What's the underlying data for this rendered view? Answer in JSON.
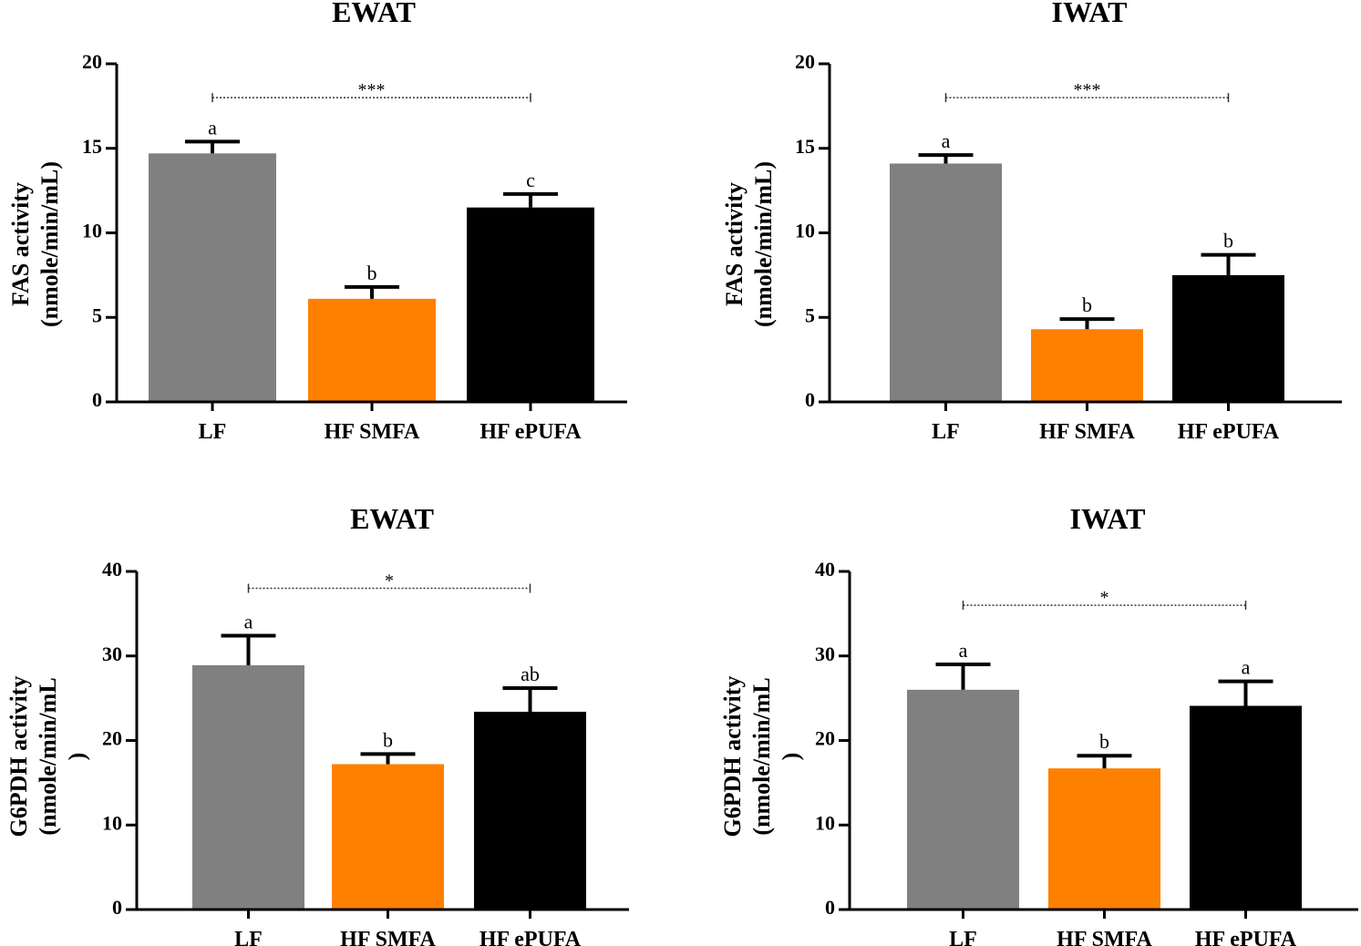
{
  "chart_data": [
    {
      "type": "bar",
      "title": "EWAT",
      "ylabel": [
        "FAS activity",
        "(nmole/min/mL)"
      ],
      "categories": [
        "LF",
        "HF SMFA",
        "HF ePUFA"
      ],
      "values": [
        14.7,
        6.1,
        11.5
      ],
      "errors": [
        0.7,
        0.7,
        0.8
      ],
      "letters": [
        "a",
        "b",
        "c"
      ],
      "colors": [
        "#808080",
        "#ff8000",
        "#000000"
      ],
      "ylim": [
        0,
        20
      ],
      "yticks": [
        "0",
        "5",
        "10",
        "15",
        "20"
      ],
      "significance": {
        "label": "***",
        "from": 0,
        "to": 2,
        "y": 18
      }
    },
    {
      "type": "bar",
      "title": "IWAT",
      "ylabel": [
        "FAS activity",
        "(nmole/min/mL)"
      ],
      "categories": [
        "LF",
        "HF SMFA",
        "HF ePUFA"
      ],
      "values": [
        14.1,
        4.3,
        7.5
      ],
      "errors": [
        0.5,
        0.6,
        1.2
      ],
      "letters": [
        "a",
        "b",
        "b"
      ],
      "colors": [
        "#808080",
        "#ff8000",
        "#000000"
      ],
      "ylim": [
        0,
        20
      ],
      "yticks": [
        "0",
        "5",
        "10",
        "15",
        "20"
      ],
      "significance": {
        "label": "***",
        "from": 0,
        "to": 2,
        "y": 18
      }
    },
    {
      "type": "bar",
      "title": "EWAT",
      "ylabel": [
        "G6PDH activity",
        "(nmole/min/mL",
        ")"
      ],
      "categories": [
        "LF",
        "HF SMFA",
        "HF ePUFA"
      ],
      "values": [
        28.9,
        17.2,
        23.4
      ],
      "errors": [
        3.5,
        1.2,
        2.8
      ],
      "letters": [
        "a",
        "b",
        "ab"
      ],
      "colors": [
        "#808080",
        "#ff8000",
        "#000000"
      ],
      "ylim": [
        0,
        40
      ],
      "yticks": [
        "0",
        "10",
        "20",
        "30",
        "40"
      ],
      "significance": {
        "label": "*",
        "from": 0,
        "to": 2,
        "y": 38
      }
    },
    {
      "type": "bar",
      "title": "IWAT",
      "ylabel": [
        "G6PDH activity",
        "(nmole/min/mL",
        ")"
      ],
      "categories": [
        "LF",
        "HF SMFA",
        "HF ePUFA"
      ],
      "values": [
        26.0,
        16.7,
        24.1
      ],
      "errors": [
        3.0,
        1.5,
        2.9
      ],
      "letters": [
        "a",
        "b",
        "a"
      ],
      "colors": [
        "#808080",
        "#ff8000",
        "#000000"
      ],
      "ylim": [
        0,
        40
      ],
      "yticks": [
        "0",
        "10",
        "20",
        "30",
        "40"
      ],
      "significance": {
        "label": "*",
        "from": 0,
        "to": 2,
        "y": 36
      }
    }
  ]
}
